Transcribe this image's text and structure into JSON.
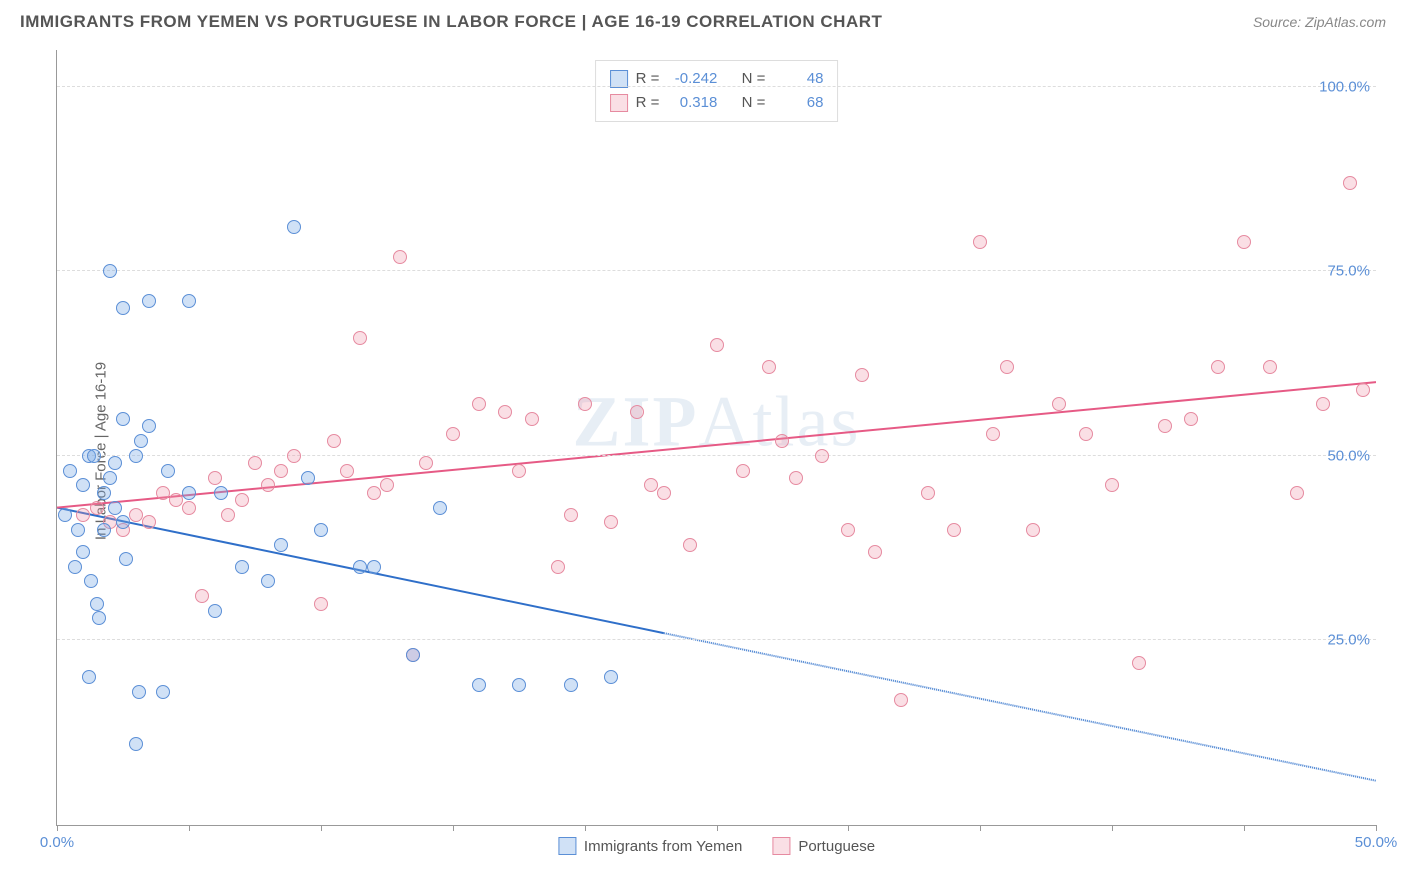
{
  "title": "IMMIGRANTS FROM YEMEN VS PORTUGUESE IN LABOR FORCE | AGE 16-19 CORRELATION CHART",
  "source_label": "Source: ZipAtlas.com",
  "ylabel": "In Labor Force | Age 16-19",
  "watermark": "ZIPAtlas",
  "chart": {
    "type": "scatter",
    "background_color": "#ffffff",
    "grid_color": "#dddddd",
    "axis_color": "#999999",
    "text_color": "#666666",
    "tick_label_color": "#5b8fd6",
    "xlim": [
      0,
      50
    ],
    "ylim": [
      0,
      105
    ],
    "xtick_positions": [
      0,
      5,
      10,
      15,
      20,
      25,
      30,
      35,
      40,
      45,
      50
    ],
    "xtick_labels_shown": {
      "0": "0.0%",
      "50": "50.0%"
    },
    "ytick_positions": [
      25,
      50,
      75,
      100
    ],
    "ytick_labels": {
      "25": "25.0%",
      "50": "50.0%",
      "75": "75.0%",
      "100": "100.0%"
    },
    "marker_radius": 7,
    "marker_border_width": 1,
    "trend_line_width": 2
  },
  "series": {
    "yemen": {
      "label": "Immigrants from Yemen",
      "fill_color": "rgba(120, 170, 230, 0.35)",
      "border_color": "#5b8fd6",
      "trend_color": "#2f6fc9",
      "trend_dash_color": "#5b8fd6",
      "R_label": "R =",
      "R_value": "-0.242",
      "N_label": "N =",
      "N_value": "48",
      "trend": {
        "x1": 0,
        "y1": 43,
        "x2_solid": 23,
        "y2_solid": 26,
        "x2_dash": 50,
        "y2_dash": 6
      },
      "points": [
        [
          0.3,
          42
        ],
        [
          0.5,
          48
        ],
        [
          0.7,
          35
        ],
        [
          0.8,
          40
        ],
        [
          1.0,
          46
        ],
        [
          1.0,
          37
        ],
        [
          1.2,
          50
        ],
        [
          1.3,
          33
        ],
        [
          1.5,
          30
        ],
        [
          1.6,
          28
        ],
        [
          1.2,
          20
        ],
        [
          1.8,
          45
        ],
        [
          1.8,
          40
        ],
        [
          2.0,
          47
        ],
        [
          2.2,
          49
        ],
        [
          2.2,
          43
        ],
        [
          2.5,
          70
        ],
        [
          2.5,
          55
        ],
        [
          2.5,
          41
        ],
        [
          2.6,
          36
        ],
        [
          2.0,
          75
        ],
        [
          3.0,
          50
        ],
        [
          3.2,
          52
        ],
        [
          3.5,
          54
        ],
        [
          3.5,
          71
        ],
        [
          3.1,
          18
        ],
        [
          3.0,
          11
        ],
        [
          4.0,
          18
        ],
        [
          4.2,
          48
        ],
        [
          5.0,
          71
        ],
        [
          5.0,
          45
        ],
        [
          1.4,
          50
        ],
        [
          6.0,
          29
        ],
        [
          6.2,
          45
        ],
        [
          7.0,
          35
        ],
        [
          8.0,
          33
        ],
        [
          8.5,
          38
        ],
        [
          9.0,
          81
        ],
        [
          9.5,
          47
        ],
        [
          10.0,
          40
        ],
        [
          11.5,
          35
        ],
        [
          12.0,
          35
        ],
        [
          13.5,
          23
        ],
        [
          14.5,
          43
        ],
        [
          16.0,
          19
        ],
        [
          17.5,
          19
        ],
        [
          19.5,
          19
        ],
        [
          21.0,
          20
        ]
      ]
    },
    "portuguese": {
      "label": "Portuguese",
      "fill_color": "rgba(240, 150, 170, 0.30)",
      "border_color": "#e68aa0",
      "trend_color": "#e65a85",
      "R_label": "R =",
      "R_value": "0.318",
      "N_label": "N =",
      "N_value": "68",
      "trend": {
        "x1": 0,
        "y1": 43,
        "x2_solid": 50,
        "y2_solid": 60
      },
      "points": [
        [
          1.0,
          42
        ],
        [
          1.5,
          43
        ],
        [
          2.0,
          41
        ],
        [
          2.5,
          40
        ],
        [
          3.0,
          42
        ],
        [
          3.5,
          41
        ],
        [
          4.0,
          45
        ],
        [
          4.5,
          44
        ],
        [
          5.0,
          43
        ],
        [
          5.5,
          31
        ],
        [
          6.0,
          47
        ],
        [
          6.5,
          42
        ],
        [
          7.0,
          44
        ],
        [
          7.5,
          49
        ],
        [
          8.0,
          46
        ],
        [
          8.5,
          48
        ],
        [
          9.0,
          50
        ],
        [
          10.0,
          30
        ],
        [
          10.5,
          52
        ],
        [
          11.0,
          48
        ],
        [
          11.5,
          66
        ],
        [
          12.0,
          45
        ],
        [
          12.5,
          46
        ],
        [
          13.0,
          77
        ],
        [
          13.5,
          23
        ],
        [
          14.0,
          49
        ],
        [
          15.0,
          53
        ],
        [
          16.0,
          57
        ],
        [
          17.0,
          56
        ],
        [
          17.5,
          48
        ],
        [
          18.0,
          55
        ],
        [
          19.0,
          35
        ],
        [
          19.5,
          42
        ],
        [
          20.0,
          57
        ],
        [
          21.0,
          41
        ],
        [
          22.0,
          56
        ],
        [
          22.5,
          46
        ],
        [
          23.0,
          45
        ],
        [
          24.0,
          38
        ],
        [
          25.0,
          65
        ],
        [
          26.0,
          48
        ],
        [
          27.0,
          62
        ],
        [
          27.5,
          52
        ],
        [
          28.0,
          47
        ],
        [
          29.0,
          50
        ],
        [
          30.0,
          40
        ],
        [
          30.5,
          61
        ],
        [
          31.0,
          37
        ],
        [
          32.0,
          17
        ],
        [
          33.0,
          45
        ],
        [
          34.0,
          40
        ],
        [
          35.0,
          79
        ],
        [
          35.5,
          53
        ],
        [
          36.0,
          62
        ],
        [
          37.0,
          40
        ],
        [
          38.0,
          57
        ],
        [
          39.0,
          53
        ],
        [
          40.0,
          46
        ],
        [
          41.0,
          22
        ],
        [
          42.0,
          54
        ],
        [
          43.0,
          55
        ],
        [
          44.0,
          62
        ],
        [
          45.0,
          79
        ],
        [
          46.0,
          62
        ],
        [
          47.0,
          45
        ],
        [
          48.0,
          57
        ],
        [
          49.0,
          87
        ],
        [
          49.5,
          59
        ]
      ]
    }
  }
}
